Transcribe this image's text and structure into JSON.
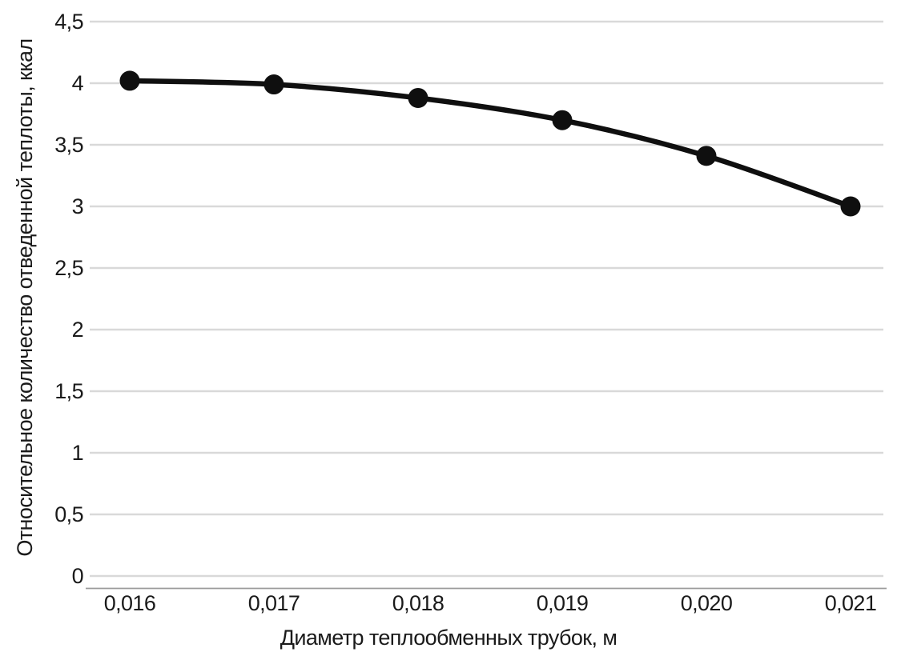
{
  "chart_data": {
    "type": "line",
    "xlabel": "Диаметр теплообменных трубок, м",
    "ylabel": "Относительное количество отведенной теплоты, ккал",
    "categories": [
      "0,016",
      "0,017",
      "0,018",
      "0,019",
      "0,020",
      "0,021"
    ],
    "values": [
      4.02,
      3.99,
      3.88,
      3.7,
      3.41,
      3.0
    ],
    "ylim": [
      0,
      4.5
    ],
    "ytick_step": 0.5,
    "ytick_labels": [
      "0",
      "0,5",
      "1",
      "1,5",
      "2",
      "2,5",
      "3",
      "3,5",
      "4",
      "4,5"
    ],
    "grid": true,
    "legend": false,
    "smooth": true,
    "marker": "circle",
    "line_color": "#0f0f0f",
    "marker_color": "#0f0f0f",
    "gridline_color": "#d9d9d9",
    "axis_line_color": "#9b9b9b",
    "text_color": "#1a1a1a",
    "background_color": "#ffffff"
  }
}
